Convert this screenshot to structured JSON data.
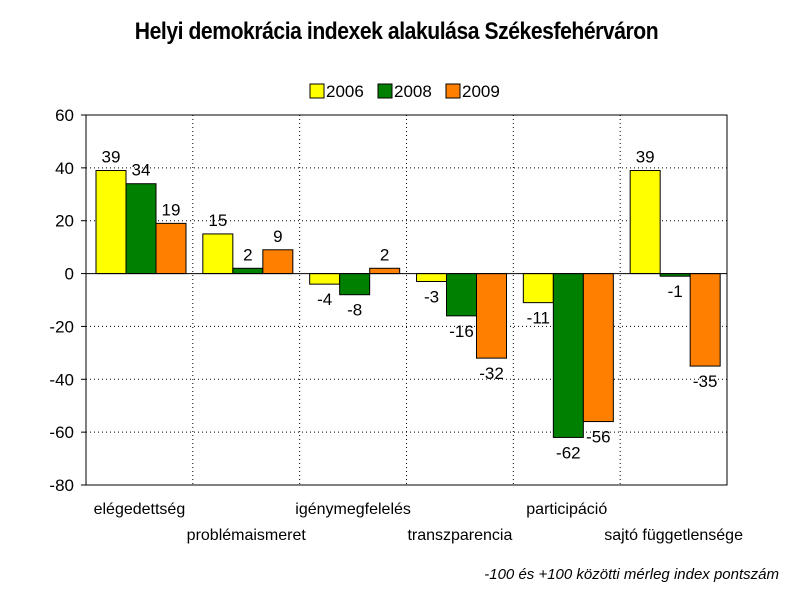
{
  "chart_data": {
    "type": "bar",
    "title": "Helyi demokrácia indexek alakulása Székesfehérváron",
    "categories": [
      "elégedettség",
      "problémaismeret",
      "igénymegfelelés",
      "transzparencia",
      "participáció",
      "sajtó függetlensége"
    ],
    "series": [
      {
        "name": "2006",
        "color": "#FFFF00",
        "values": [
          39,
          15,
          -4,
          -3,
          -11,
          39
        ]
      },
      {
        "name": "2008",
        "color": "#008000",
        "values": [
          34,
          2,
          -8,
          -16,
          -62,
          -1
        ]
      },
      {
        "name": "2009",
        "color": "#FF8000",
        "values": [
          19,
          9,
          2,
          -32,
          -56,
          -35
        ]
      }
    ],
    "ylim": [
      -80,
      60
    ],
    "yticks": [
      60,
      40,
      20,
      0,
      -20,
      -40,
      -60,
      -80
    ],
    "xlabel": "",
    "ylabel": "",
    "grid": true,
    "legend_position": "top-center",
    "footnote": "-100 és +100 közötti mérleg index pontszám"
  }
}
